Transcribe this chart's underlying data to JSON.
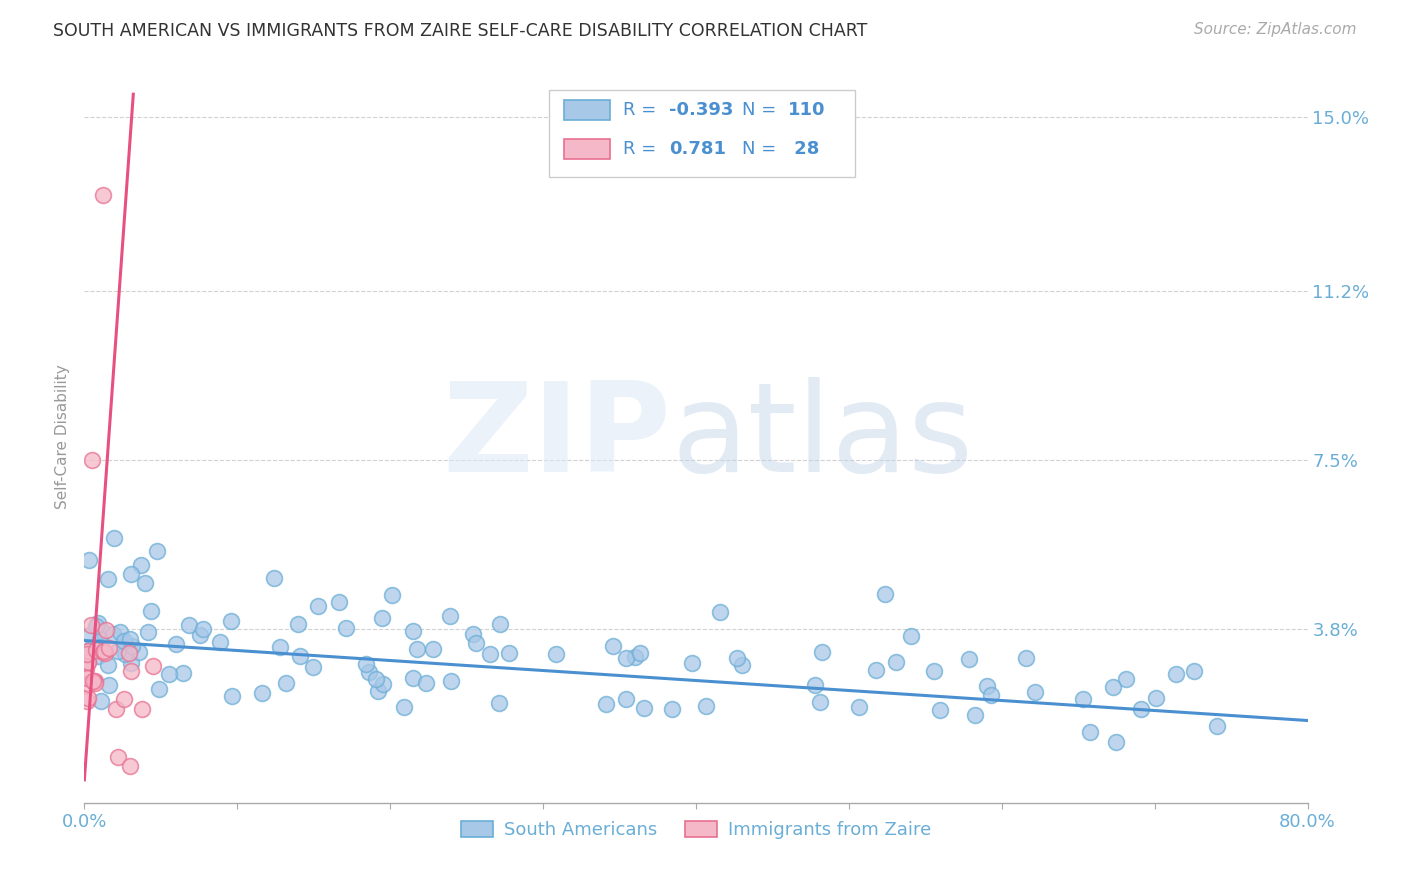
{
  "title": "SOUTH AMERICAN VS IMMIGRANTS FROM ZAIRE SELF-CARE DISABILITY CORRELATION CHART",
  "source": "Source: ZipAtlas.com",
  "ylabel": "Self-Care Disability",
  "xlim": [
    0.0,
    0.8
  ],
  "ylim": [
    0.0,
    0.16
  ],
  "xticks": [
    0.0,
    0.1,
    0.2,
    0.3,
    0.4,
    0.5,
    0.6,
    0.7,
    0.8
  ],
  "xticklabels": [
    "0.0%",
    "",
    "",
    "",
    "",
    "",
    "",
    "",
    "80.0%"
  ],
  "yticks": [
    0.038,
    0.075,
    0.112,
    0.15
  ],
  "yticklabels": [
    "3.8%",
    "7.5%",
    "11.2%",
    "15.0%"
  ],
  "blue_color": "#a8c8e8",
  "blue_edge_color": "#6aaed6",
  "pink_color": "#f4b8c8",
  "pink_edge_color": "#e87090",
  "blue_line_color": "#4a90d0",
  "pink_line_color": "#e85080",
  "background_color": "#ffffff",
  "grid_color": "#cccccc",
  "title_color": "#333333",
  "axis_label_color": "#6aaed6",
  "text_blue": "#4a90d0",
  "legend_blue_label": "South Americans",
  "legend_pink_label": "Immigrants from Zaire",
  "blue_trend_x": [
    0.0,
    0.8
  ],
  "blue_trend_y": [
    0.0355,
    0.018
  ],
  "pink_trend_x": [
    0.0,
    0.032
  ],
  "pink_trend_y": [
    0.005,
    0.155
  ]
}
